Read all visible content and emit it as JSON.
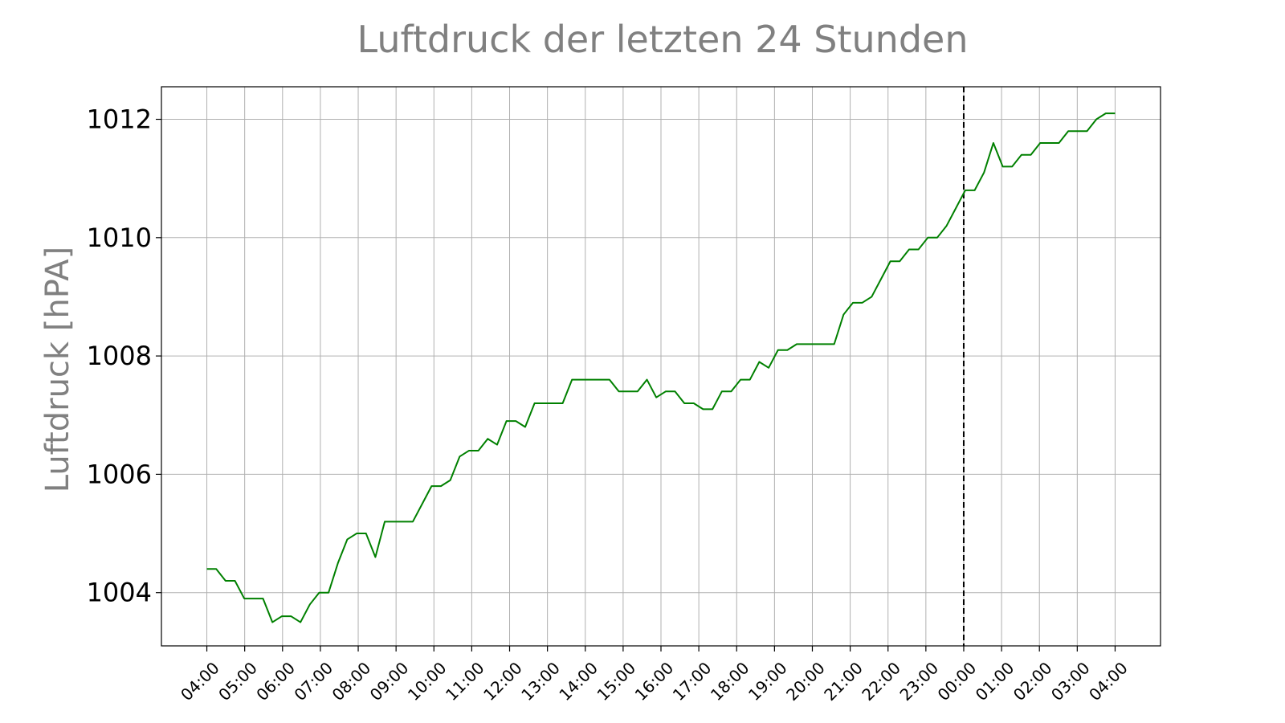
{
  "chart_data": {
    "type": "line",
    "title": "Luftdruck der letzten 24 Stunden",
    "xlabel": "",
    "ylabel": "Luftdruck [hPA]",
    "ylim": [
      1003.1,
      1012.55
    ],
    "yticks": [
      1004,
      1006,
      1008,
      1010,
      1012
    ],
    "xlim": [
      -1.2,
      25.2
    ],
    "xtick_labels": [
      "04:00",
      "05:00",
      "06:00",
      "07:00",
      "08:00",
      "09:00",
      "10:00",
      "11:00",
      "12:00",
      "13:00",
      "14:00",
      "15:00",
      "16:00",
      "17:00",
      "18:00",
      "19:00",
      "20:00",
      "21:00",
      "22:00",
      "23:00",
      "00:00",
      "01:00",
      "02:00",
      "03:00",
      "04:00"
    ],
    "grid": true,
    "line_color": "#008000",
    "vline": {
      "label": "00:00",
      "style": "dashed",
      "color": "#000000"
    },
    "series": [
      {
        "values": [
          1004.4,
          1004.4,
          1004.2,
          1004.2,
          1003.9,
          1003.9,
          1003.9,
          1003.5,
          1003.6,
          1003.6,
          1003.5,
          1003.8,
          1004.0,
          1004.0,
          1004.5,
          1004.9,
          1005.0,
          1005.0,
          1004.6,
          1005.2,
          1005.2,
          1005.2,
          1005.2,
          1005.5,
          1005.8,
          1005.8,
          1005.9,
          1006.3,
          1006.4,
          1006.4,
          1006.6,
          1006.5,
          1006.9,
          1006.9,
          1006.8,
          1007.2,
          1007.2,
          1007.2,
          1007.2,
          1007.6,
          1007.6,
          1007.6,
          1007.6,
          1007.6,
          1007.4,
          1007.4,
          1007.4,
          1007.6,
          1007.3,
          1007.4,
          1007.4,
          1007.2,
          1007.2,
          1007.1,
          1007.1,
          1007.4,
          1007.4,
          1007.6,
          1007.6,
          1007.9,
          1007.8,
          1008.1,
          1008.1,
          1008.2,
          1008.2,
          1008.2,
          1008.2,
          1008.2,
          1008.7,
          1008.9,
          1008.9,
          1009.0,
          1009.3,
          1009.6,
          1009.6,
          1009.8,
          1009.8,
          1010.0,
          1010.0,
          1010.2,
          1010.5,
          1010.8,
          1010.8,
          1011.1,
          1011.6,
          1011.2,
          1011.2,
          1011.4,
          1011.4,
          1011.6,
          1011.6,
          1011.6,
          1011.8,
          1011.8,
          1011.8,
          1012.0,
          1012.1,
          1012.1
        ]
      }
    ]
  }
}
